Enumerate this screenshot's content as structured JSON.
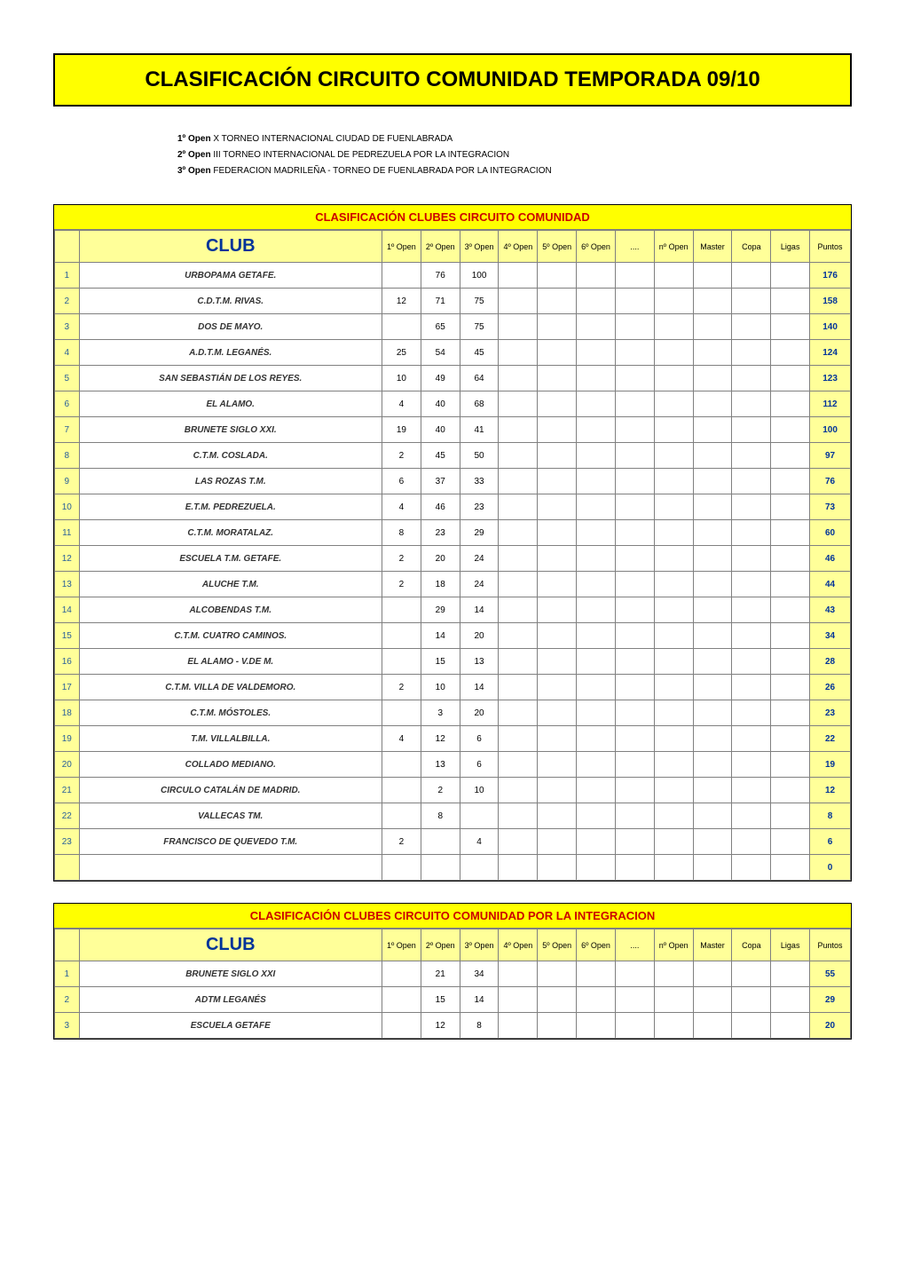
{
  "title": "CLASIFICACIÓN CIRCUITO COMUNIDAD TEMPORADA 09/10",
  "notes": [
    {
      "label": "1º Open",
      "text": " X TORNEO INTERNACIONAL CIUDAD DE FUENLABRADA"
    },
    {
      "label": "2º Open",
      "text": " III TORNEO INTERNACIONAL DE PEDREZUELA POR LA INTEGRACION"
    },
    {
      "label": "3º Open",
      "text": " FEDERACION MADRILEÑA - TORNEO DE FUENLABRADA POR LA INTEGRACION"
    }
  ],
  "columns": [
    "1º Open",
    "2º Open",
    "3º Open",
    "4º Open",
    "5º Open",
    "6º Open",
    "....",
    "nº Open",
    "Master",
    "Copa",
    "Ligas",
    "Puntos"
  ],
  "colors": {
    "banner_bg": "#ffff00",
    "header_bg": "#ffff99",
    "title_text": "#cc0000",
    "club_header_text": "#003399",
    "points_text": "#003399"
  },
  "table1": {
    "banner": "CLASIFICACIÓN CLUBES CIRCUITO COMUNIDAD",
    "club_header": "CLUB",
    "rows": [
      {
        "rank": 1,
        "club": "URBOPAMA GETAFE.",
        "o1": "",
        "o2": "76",
        "o3": "100",
        "pts": "176"
      },
      {
        "rank": 2,
        "club": "C.D.T.M. RIVAS.",
        "o1": "12",
        "o2": "71",
        "o3": "75",
        "pts": "158"
      },
      {
        "rank": 3,
        "club": "DOS DE MAYO.",
        "o1": "",
        "o2": "65",
        "o3": "75",
        "pts": "140"
      },
      {
        "rank": 4,
        "club": "A.D.T.M. LEGANÉS.",
        "o1": "25",
        "o2": "54",
        "o3": "45",
        "pts": "124"
      },
      {
        "rank": 5,
        "club": "SAN SEBASTIÁN DE LOS REYES.",
        "o1": "10",
        "o2": "49",
        "o3": "64",
        "pts": "123"
      },
      {
        "rank": 6,
        "club": "EL ALAMO.",
        "o1": "4",
        "o2": "40",
        "o3": "68",
        "pts": "112"
      },
      {
        "rank": 7,
        "club": "BRUNETE SIGLO XXI.",
        "o1": "19",
        "o2": "40",
        "o3": "41",
        "pts": "100"
      },
      {
        "rank": 8,
        "club": "C.T.M. COSLADA.",
        "o1": "2",
        "o2": "45",
        "o3": "50",
        "pts": "97"
      },
      {
        "rank": 9,
        "club": "LAS ROZAS T.M.",
        "o1": "6",
        "o2": "37",
        "o3": "33",
        "pts": "76"
      },
      {
        "rank": 10,
        "club": "E.T.M. PEDREZUELA.",
        "o1": "4",
        "o2": "46",
        "o3": "23",
        "pts": "73"
      },
      {
        "rank": 11,
        "club": "C.T.M. MORATALAZ.",
        "o1": "8",
        "o2": "23",
        "o3": "29",
        "pts": "60"
      },
      {
        "rank": 12,
        "club": "ESCUELA T.M. GETAFE.",
        "o1": "2",
        "o2": "20",
        "o3": "24",
        "pts": "46"
      },
      {
        "rank": 13,
        "club": "ALUCHE T.M.",
        "o1": "2",
        "o2": "18",
        "o3": "24",
        "pts": "44"
      },
      {
        "rank": 14,
        "club": "ALCOBENDAS T.M.",
        "o1": "",
        "o2": "29",
        "o3": "14",
        "pts": "43"
      },
      {
        "rank": 15,
        "club": "C.T.M. CUATRO CAMINOS.",
        "o1": "",
        "o2": "14",
        "o3": "20",
        "pts": "34"
      },
      {
        "rank": 16,
        "club": "EL ALAMO - V.DE M.",
        "o1": "",
        "o2": "15",
        "o3": "13",
        "pts": "28"
      },
      {
        "rank": 17,
        "club": "C.T.M. VILLA DE VALDEMORO.",
        "o1": "2",
        "o2": "10",
        "o3": "14",
        "pts": "26"
      },
      {
        "rank": 18,
        "club": "C.T.M. MÓSTOLES.",
        "o1": "",
        "o2": "3",
        "o3": "20",
        "pts": "23"
      },
      {
        "rank": 19,
        "club": "T.M. VILLALBILLA.",
        "o1": "4",
        "o2": "12",
        "o3": "6",
        "pts": "22"
      },
      {
        "rank": 20,
        "club": "COLLADO MEDIANO.",
        "o1": "",
        "o2": "13",
        "o3": "6",
        "pts": "19"
      },
      {
        "rank": 21,
        "club": "CIRCULO CATALÁN DE MADRID.",
        "o1": "",
        "o2": "2",
        "o3": "10",
        "pts": "12"
      },
      {
        "rank": 22,
        "club": "VALLECAS TM.",
        "o1": "",
        "o2": "8",
        "o3": "",
        "pts": "8"
      },
      {
        "rank": 23,
        "club": "FRANCISCO DE QUEVEDO T.M.",
        "o1": "2",
        "o2": "",
        "o3": "4",
        "pts": "6"
      },
      {
        "rank": "",
        "club": "",
        "o1": "",
        "o2": "",
        "o3": "",
        "pts": "0"
      }
    ]
  },
  "table2": {
    "banner": "CLASIFICACIÓN CLUBES CIRCUITO COMUNIDAD POR LA INTEGRACION",
    "club_header": "CLUB",
    "rows": [
      {
        "rank": 1,
        "club": "BRUNETE SIGLO XXI",
        "o1": "",
        "o2": "21",
        "o3": "34",
        "pts": "55"
      },
      {
        "rank": 2,
        "club": "ADTM LEGANÉS",
        "o1": "",
        "o2": "15",
        "o3": "14",
        "pts": "29"
      },
      {
        "rank": 3,
        "club": "ESCUELA GETAFE",
        "o1": "",
        "o2": "12",
        "o3": "8",
        "pts": "20"
      }
    ]
  }
}
